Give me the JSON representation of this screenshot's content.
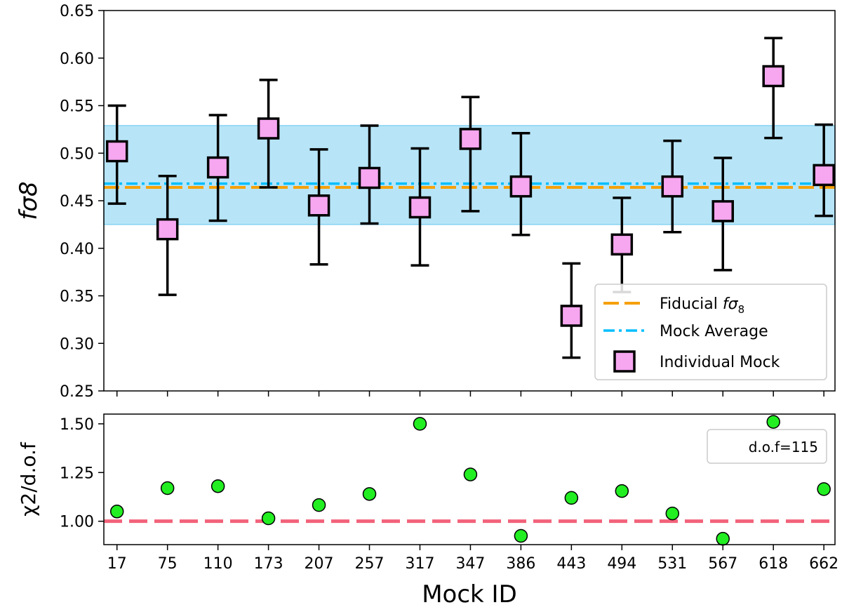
{
  "chart_data": [
    {
      "type": "scatter",
      "panel": "top",
      "ylabel": "fσ8",
      "categories": [
        "17",
        "75",
        "110",
        "173",
        "207",
        "257",
        "317",
        "347",
        "386",
        "443",
        "494",
        "531",
        "567",
        "618",
        "662"
      ],
      "ylim": [
        0.25,
        0.65
      ],
      "yticks": [
        "0.25",
        "0.30",
        "0.35",
        "0.40",
        "0.45",
        "0.50",
        "0.55",
        "0.60",
        "0.65"
      ],
      "series": [
        {
          "name": "Individual Mock",
          "values": [
            0.502,
            0.42,
            0.485,
            0.526,
            0.445,
            0.474,
            0.443,
            0.515,
            0.465,
            0.329,
            0.404,
            0.465,
            0.439,
            0.581,
            0.477
          ],
          "err_low": [
            0.447,
            0.351,
            0.429,
            0.464,
            0.383,
            0.426,
            0.382,
            0.439,
            0.414,
            0.285,
            0.354,
            0.417,
            0.377,
            0.516,
            0.434
          ],
          "err_high": [
            0.55,
            0.476,
            0.54,
            0.577,
            0.504,
            0.529,
            0.505,
            0.559,
            0.521,
            0.384,
            0.453,
            0.513,
            0.495,
            0.621,
            0.53
          ],
          "marker_fill": "#f7a6f0",
          "marker_edge": "#000000"
        }
      ],
      "hlines": [
        {
          "name": "Fiducial fσ8",
          "value": 0.464,
          "color": "#f5a00a",
          "style": "dashed"
        },
        {
          "name": "Mock Average",
          "value": 0.468,
          "color": "#00bfff",
          "style": "dashdot"
        }
      ],
      "band": {
        "low": 0.425,
        "high": 0.529,
        "color": "#87d3f2"
      },
      "legend": {
        "placement": "lower-right",
        "entries": [
          {
            "label_main": "Fiducial ",
            "label_italic": "fσ",
            "label_sub": "8"
          },
          {
            "label_main": "Mock Average"
          },
          {
            "label_main": "Individual Mock"
          }
        ]
      }
    },
    {
      "type": "scatter",
      "panel": "bottom",
      "ylabel": "χ2/d.o.f",
      "xlabel": "Mock ID",
      "categories": [
        "17",
        "75",
        "110",
        "173",
        "207",
        "257",
        "317",
        "347",
        "386",
        "443",
        "494",
        "531",
        "567",
        "618",
        "662"
      ],
      "ylim": [
        0.88,
        1.55
      ],
      "yticks": [
        "1.00",
        "1.25",
        "1.50"
      ],
      "values": [
        1.05,
        1.17,
        1.18,
        1.015,
        1.083,
        1.14,
        1.5,
        1.24,
        0.925,
        1.12,
        1.155,
        1.04,
        0.91,
        1.51,
        1.165
      ],
      "marker_color": "#22ee22",
      "reference_line": {
        "value": 1.0,
        "color": "#f2637b",
        "style": "dashed"
      },
      "annotation": "d.o.f=115"
    }
  ]
}
